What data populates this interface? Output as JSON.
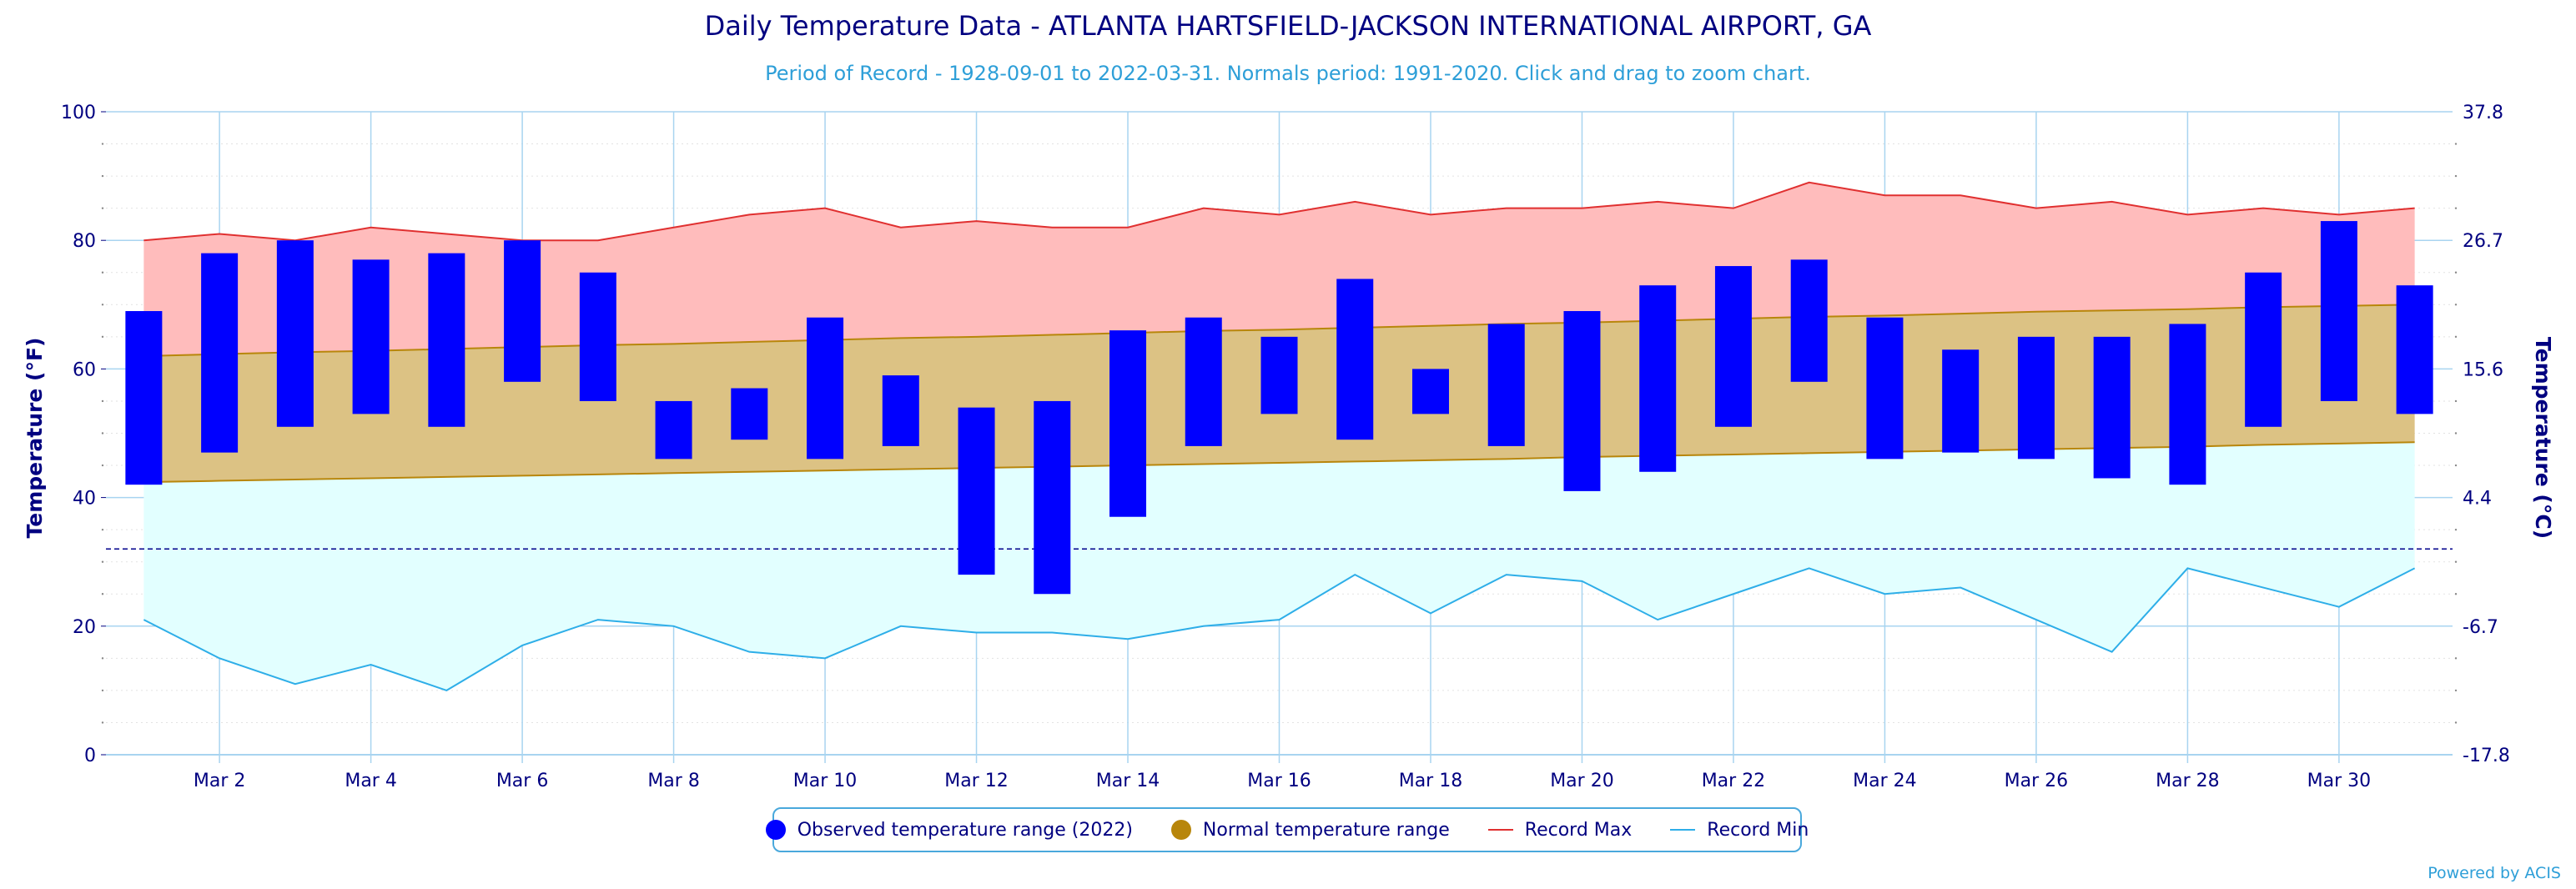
{
  "header": {
    "title": "Daily Temperature Data - ATLANTA HARTSFIELD-JACKSON INTERNATIONAL AIRPORT, GA",
    "subtitle": "Period of Record - 1928-09-01 to 2022-03-31. Normals period: 1991-2020. Click and drag to zoom chart."
  },
  "footer": {
    "credit": "Powered by ACIS"
  },
  "legend": {
    "observed": "Observed temperature range (2022)",
    "normal": "Normal temperature range",
    "record_max": "Record Max",
    "record_min": "Record Min"
  },
  "colors": {
    "observed": "#0000ff",
    "normal_fill": "#dcc284",
    "normal_line": "#b8860b",
    "normal_legend": "#b8860b",
    "record_max_fill": "#ffbcbc",
    "record_max_line": "#e03030",
    "record_min_fill": "#e2ffff",
    "record_min_line": "#2eaee8",
    "freezing_line": "#00008b",
    "axis_text": "#000080",
    "grid": "#a8d4f0"
  },
  "chart_data": {
    "type": "bar",
    "title": "Daily Temperature Data - ATLANTA HARTSFIELD-JACKSON INTERNATIONAL AIRPORT, GA",
    "subtitle": "Period of Record - 1928-09-01 to 2022-03-31. Normals period: 1991-2020. Click and drag to zoom chart.",
    "ylabel": "Temperature (°F)",
    "y2label": "Temperature (°C)",
    "ylim": [
      0,
      100
    ],
    "yticks": [
      0,
      20,
      40,
      60,
      80,
      100
    ],
    "y2ticks": [
      "-17.8",
      "-6.7",
      "4.4",
      "15.6",
      "26.7",
      "37.8"
    ],
    "days": [
      1,
      2,
      3,
      4,
      5,
      6,
      7,
      8,
      9,
      10,
      11,
      12,
      13,
      14,
      15,
      16,
      17,
      18,
      19,
      20,
      21,
      22,
      23,
      24,
      25,
      26,
      27,
      28,
      29,
      30,
      31
    ],
    "xtick_labels": [
      "Mar 2",
      "Mar 4",
      "Mar 6",
      "Mar 8",
      "Mar 10",
      "Mar 12",
      "Mar 14",
      "Mar 16",
      "Mar 18",
      "Mar 20",
      "Mar 22",
      "Mar 24",
      "Mar 26",
      "Mar 28",
      "Mar 30"
    ],
    "xtick_days": [
      2,
      4,
      6,
      8,
      10,
      12,
      14,
      16,
      18,
      20,
      22,
      24,
      26,
      28,
      30
    ],
    "freezing_line": 32,
    "series": [
      {
        "name": "Observed temperature range (2022)",
        "type": "columnrange",
        "low": [
          42,
          47,
          51,
          53,
          51,
          58,
          55,
          46,
          49,
          46,
          48,
          28,
          25,
          37,
          48,
          53,
          49,
          53,
          48,
          41,
          44,
          51,
          58,
          46,
          47,
          46,
          43,
          42,
          51,
          55,
          53
        ],
        "high": [
          69,
          78,
          80,
          77,
          78,
          80,
          75,
          55,
          57,
          68,
          59,
          54,
          55,
          66,
          68,
          65,
          74,
          60,
          67,
          69,
          73,
          76,
          77,
          68,
          63,
          65,
          65,
          67,
          75,
          83,
          73
        ]
      },
      {
        "name": "Normal temperature range",
        "type": "arearange",
        "low": [
          42.4,
          42.6,
          42.8,
          43.0,
          43.2,
          43.4,
          43.6,
          43.8,
          44.0,
          44.2,
          44.4,
          44.6,
          44.8,
          45.0,
          45.2,
          45.4,
          45.6,
          45.8,
          46.0,
          46.3,
          46.5,
          46.7,
          46.9,
          47.1,
          47.3,
          47.5,
          47.7,
          47.9,
          48.2,
          48.4,
          48.6
        ],
        "high": [
          62.0,
          62.3,
          62.6,
          62.8,
          63.1,
          63.4,
          63.7,
          63.9,
          64.2,
          64.5,
          64.8,
          65.0,
          65.3,
          65.6,
          65.9,
          66.1,
          66.4,
          66.7,
          67.0,
          67.2,
          67.5,
          67.8,
          68.1,
          68.3,
          68.6,
          68.9,
          69.1,
          69.3,
          69.6,
          69.8,
          70.0
        ]
      },
      {
        "name": "Record Max",
        "type": "line",
        "values": [
          80,
          81,
          80,
          82,
          81,
          80,
          80,
          82,
          84,
          85,
          82,
          83,
          82,
          82,
          85,
          84,
          86,
          84,
          85,
          85,
          86,
          85,
          89,
          87,
          87,
          85,
          86,
          84,
          85,
          84,
          85
        ]
      },
      {
        "name": "Record Min",
        "type": "line",
        "values": [
          21,
          15,
          11,
          14,
          10,
          17,
          21,
          20,
          16,
          15,
          20,
          19,
          19,
          18,
          20,
          21,
          28,
          22,
          28,
          27,
          21,
          25,
          29,
          25,
          26,
          21,
          16,
          29,
          26,
          23,
          29
        ]
      }
    ]
  }
}
